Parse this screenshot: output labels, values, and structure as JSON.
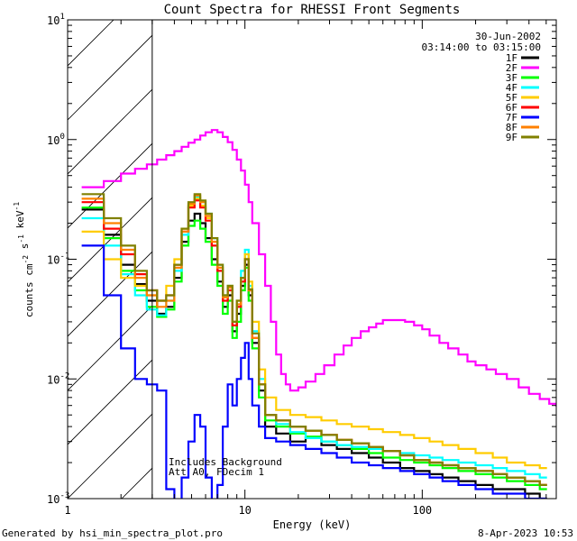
{
  "footer": {
    "generated_by": "Generated by hsi_min_spectra_plot.pro",
    "timestamp": "8-Apr-2023 10:53"
  },
  "chart_data": {
    "type": "line",
    "title": "Count Spectra for RHESSI Front Segments",
    "xlabel": "Energy (keV)",
    "ylabel": "counts cm^-2 s^-1 keV^-1",
    "xscale": "log",
    "yscale": "log",
    "xlim": [
      1,
      570
    ],
    "ylim": [
      0.001,
      10
    ],
    "x_tick_labels": [
      {
        "value": 1,
        "text": "1"
      },
      {
        "value": 10,
        "text": "10"
      },
      {
        "value": 100,
        "text": "100"
      }
    ],
    "y_tick_labels": [
      {
        "value": 0.001,
        "mant": "10",
        "exp": "-3"
      },
      {
        "value": 0.01,
        "mant": "10",
        "exp": "-2"
      },
      {
        "value": 0.1,
        "mant": "10",
        "exp": "-1"
      },
      {
        "value": 1,
        "mant": "10",
        "exp": "0"
      },
      {
        "value": 10,
        "mant": "10",
        "exp": "1"
      }
    ],
    "grid": false,
    "legend_position": "top-right",
    "date": "30-Jun-2002",
    "time_range": "03:14:00 to 03:15:00",
    "shaded_region_max": 3,
    "annotations": [
      "Includes Background",
      "Att A0, FDecim 1"
    ],
    "series": [
      {
        "name": "1F",
        "color": "#000000",
        "x": [
          1.2,
          1.6,
          2.0,
          2.4,
          2.8,
          3.2,
          3.6,
          4.0,
          4.4,
          4.8,
          5.2,
          5.6,
          6.0,
          6.5,
          7.0,
          7.5,
          8.0,
          8.5,
          9.0,
          9.5,
          10.0,
          10.5,
          11,
          12,
          13,
          15,
          18,
          22,
          27,
          33,
          40,
          50,
          60,
          75,
          90,
          110,
          130,
          160,
          200,
          250,
          300,
          380,
          460
        ],
        "y": [
          0.26,
          0.16,
          0.09,
          0.062,
          0.045,
          0.035,
          0.04,
          0.07,
          0.14,
          0.21,
          0.24,
          0.2,
          0.15,
          0.1,
          0.065,
          0.04,
          0.05,
          0.025,
          0.035,
          0.06,
          0.09,
          0.05,
          0.02,
          0.008,
          0.004,
          0.0035,
          0.003,
          0.0032,
          0.0028,
          0.0026,
          0.0024,
          0.0022,
          0.002,
          0.0018,
          0.0017,
          0.0016,
          0.0015,
          0.0014,
          0.0013,
          0.0012,
          0.0012,
          0.0011,
          0.001
        ]
      },
      {
        "name": "2F",
        "color": "#ff00ff",
        "x": [
          1.2,
          1.6,
          2.0,
          2.4,
          2.8,
          3.2,
          3.6,
          4.0,
          4.4,
          4.8,
          5.2,
          5.6,
          6.0,
          6.5,
          7.0,
          7.5,
          8.0,
          8.5,
          9.0,
          9.5,
          10.0,
          10.5,
          11,
          12,
          13,
          14,
          15,
          16,
          17,
          18,
          20,
          22,
          25,
          28,
          32,
          36,
          40,
          45,
          50,
          55,
          60,
          70,
          80,
          90,
          100,
          110,
          125,
          140,
          160,
          180,
          200,
          230,
          260,
          300,
          350,
          400,
          460,
          520,
          570
        ],
        "y": [
          0.4,
          0.45,
          0.52,
          0.57,
          0.62,
          0.68,
          0.74,
          0.8,
          0.87,
          0.94,
          1.0,
          1.08,
          1.15,
          1.2,
          1.15,
          1.05,
          0.95,
          0.82,
          0.68,
          0.55,
          0.42,
          0.3,
          0.2,
          0.11,
          0.06,
          0.03,
          0.016,
          0.011,
          0.009,
          0.008,
          0.0085,
          0.0095,
          0.011,
          0.013,
          0.016,
          0.019,
          0.022,
          0.025,
          0.027,
          0.029,
          0.031,
          0.031,
          0.03,
          0.028,
          0.026,
          0.023,
          0.02,
          0.018,
          0.016,
          0.014,
          0.013,
          0.012,
          0.011,
          0.01,
          0.0085,
          0.0075,
          0.0068,
          0.0062,
          0.006
        ]
      },
      {
        "name": "3F",
        "color": "#00ff00",
        "x": [
          1.2,
          1.6,
          2.0,
          2.4,
          2.8,
          3.2,
          3.6,
          4.0,
          4.4,
          4.8,
          5.2,
          5.6,
          6.0,
          6.5,
          7.0,
          7.5,
          8.0,
          8.5,
          9.0,
          9.5,
          10.0,
          10.5,
          11,
          12,
          13,
          15,
          18,
          22,
          27,
          33,
          40,
          50,
          60,
          75,
          90,
          110,
          130,
          160,
          200,
          250,
          300,
          380,
          460
        ],
        "y": [
          0.27,
          0.15,
          0.08,
          0.055,
          0.04,
          0.033,
          0.038,
          0.065,
          0.13,
          0.19,
          0.21,
          0.18,
          0.14,
          0.09,
          0.06,
          0.035,
          0.045,
          0.022,
          0.03,
          0.055,
          0.085,
          0.045,
          0.018,
          0.007,
          0.0045,
          0.004,
          0.0035,
          0.0033,
          0.003,
          0.0028,
          0.0026,
          0.0024,
          0.0022,
          0.0021,
          0.002,
          0.0019,
          0.0018,
          0.0017,
          0.0016,
          0.0015,
          0.0014,
          0.0013,
          0.0012
        ]
      },
      {
        "name": "4F",
        "color": "#00ffff",
        "x": [
          1.2,
          1.6,
          2.0,
          2.4,
          2.8,
          3.2,
          3.6,
          4.0,
          4.4,
          4.8,
          5.2,
          5.6,
          6.0,
          6.5,
          7.0,
          7.5,
          8.0,
          8.5,
          9.0,
          9.5,
          10.0,
          10.5,
          11,
          12,
          13,
          15,
          18,
          22,
          27,
          33,
          40,
          50,
          60,
          75,
          90,
          110,
          130,
          160,
          200,
          250,
          300,
          380,
          460
        ],
        "y": [
          0.22,
          0.13,
          0.075,
          0.05,
          0.038,
          0.034,
          0.045,
          0.08,
          0.16,
          0.28,
          0.33,
          0.3,
          0.24,
          0.15,
          0.09,
          0.05,
          0.06,
          0.03,
          0.04,
          0.08,
          0.12,
          0.06,
          0.025,
          0.01,
          0.005,
          0.0042,
          0.0036,
          0.0032,
          0.003,
          0.0028,
          0.0027,
          0.0026,
          0.0025,
          0.0024,
          0.0023,
          0.0022,
          0.0021,
          0.002,
          0.0019,
          0.0018,
          0.0017,
          0.0016,
          0.0015
        ]
      },
      {
        "name": "5F",
        "color": "#ffcc00",
        "x": [
          1.2,
          1.6,
          2.0,
          2.4,
          2.8,
          3.2,
          3.6,
          4.0,
          4.4,
          4.8,
          5.2,
          5.6,
          6.0,
          6.5,
          7.0,
          7.5,
          8.0,
          8.5,
          9.0,
          9.5,
          10.0,
          10.5,
          11,
          12,
          13,
          15,
          18,
          22,
          27,
          33,
          40,
          50,
          60,
          75,
          90,
          110,
          130,
          160,
          200,
          250,
          300,
          380,
          460
        ],
        "y": [
          0.17,
          0.1,
          0.07,
          0.06,
          0.05,
          0.045,
          0.06,
          0.1,
          0.18,
          0.28,
          0.32,
          0.28,
          0.22,
          0.14,
          0.085,
          0.05,
          0.06,
          0.03,
          0.045,
          0.07,
          0.11,
          0.065,
          0.03,
          0.012,
          0.007,
          0.0055,
          0.005,
          0.0048,
          0.0045,
          0.0042,
          0.004,
          0.0038,
          0.0036,
          0.0034,
          0.0032,
          0.003,
          0.0028,
          0.0026,
          0.0024,
          0.0022,
          0.002,
          0.0019,
          0.0018
        ]
      },
      {
        "name": "6F",
        "color": "#ff0000",
        "x": [
          1.2,
          1.6,
          2.0,
          2.4,
          2.8,
          3.2,
          3.6,
          4.0,
          4.4,
          4.8,
          5.2,
          5.6,
          6.0,
          6.5,
          7.0,
          7.5,
          8.0,
          8.5,
          9.0,
          9.5,
          10.0,
          10.5,
          11,
          12,
          13,
          15,
          18,
          22,
          27,
          33,
          40,
          50,
          60,
          75,
          90,
          110,
          130,
          160,
          200,
          250,
          300,
          380,
          460
        ],
        "y": [
          0.3,
          0.18,
          0.11,
          0.075,
          0.055,
          0.045,
          0.05,
          0.09,
          0.17,
          0.27,
          0.31,
          0.27,
          0.21,
          0.13,
          0.08,
          0.045,
          0.055,
          0.028,
          0.04,
          0.065,
          0.1,
          0.055,
          0.022,
          0.009,
          0.005,
          0.0045,
          0.004,
          0.0037,
          0.0034,
          0.0031,
          0.0029,
          0.0027,
          0.0025,
          0.0023,
          0.0021,
          0.002,
          0.0019,
          0.0018,
          0.0017,
          0.0016,
          0.0015,
          0.0014,
          0.0013
        ]
      },
      {
        "name": "7F",
        "color": "#0000ff",
        "x": [
          1.2,
          1.6,
          2.0,
          2.4,
          2.8,
          3.2,
          3.6,
          4.0,
          4.4,
          4.8,
          5.2,
          5.6,
          6.0,
          6.5,
          7.0,
          7.5,
          8.0,
          8.5,
          9.0,
          9.5,
          10.0,
          10.5,
          11,
          12,
          13,
          15,
          18,
          22,
          27,
          33,
          40,
          50,
          60,
          75,
          90,
          110,
          130,
          160,
          200,
          250,
          300,
          380,
          460
        ],
        "y": [
          0.13,
          0.05,
          0.018,
          0.01,
          0.009,
          0.008,
          0.0012,
          0.0009,
          0.0015,
          0.003,
          0.005,
          0.004,
          0.0015,
          0.0009,
          0.0013,
          0.004,
          0.009,
          0.006,
          0.01,
          0.015,
          0.02,
          0.01,
          0.006,
          0.004,
          0.0032,
          0.003,
          0.0028,
          0.0026,
          0.0024,
          0.0022,
          0.002,
          0.0019,
          0.0018,
          0.0017,
          0.0016,
          0.0015,
          0.0014,
          0.0013,
          0.0012,
          0.0011,
          0.0011,
          0.001,
          0.001
        ]
      },
      {
        "name": "8F",
        "color": "#ff8000",
        "x": [
          1.2,
          1.6,
          2.0,
          2.4,
          2.8,
          3.2,
          3.6,
          4.0,
          4.4,
          4.8,
          5.2,
          5.6,
          6.0,
          6.5,
          7.0,
          7.5,
          8.0,
          8.5,
          9.0,
          9.5,
          10.0,
          10.5,
          11,
          12,
          13,
          15,
          18,
          22,
          27,
          33,
          40,
          50,
          60,
          75,
          90,
          110,
          130,
          160,
          200,
          250,
          300,
          380,
          460
        ],
        "y": [
          0.32,
          0.2,
          0.12,
          0.07,
          0.05,
          0.04,
          0.045,
          0.085,
          0.17,
          0.29,
          0.34,
          0.3,
          0.23,
          0.14,
          0.085,
          0.048,
          0.058,
          0.03,
          0.042,
          0.07,
          0.1,
          0.055,
          0.022,
          0.009,
          0.005,
          0.0045,
          0.004,
          0.0037,
          0.0034,
          0.0031,
          0.0029,
          0.0027,
          0.0025,
          0.0023,
          0.0021,
          0.002,
          0.0019,
          0.0018,
          0.0017,
          0.0016,
          0.0015,
          0.0014,
          0.0013
        ]
      },
      {
        "name": "9F",
        "color": "#808000",
        "x": [
          1.2,
          1.6,
          2.0,
          2.4,
          2.8,
          3.2,
          3.6,
          4.0,
          4.4,
          4.8,
          5.2,
          5.6,
          6.0,
          6.5,
          7.0,
          7.5,
          8.0,
          8.5,
          9.0,
          9.5,
          10.0,
          10.5,
          11,
          12,
          13,
          15,
          18,
          22,
          27,
          33,
          40,
          50,
          60,
          75,
          90,
          110,
          130,
          160,
          200,
          250,
          300,
          380,
          460
        ],
        "y": [
          0.35,
          0.22,
          0.13,
          0.08,
          0.055,
          0.045,
          0.05,
          0.09,
          0.18,
          0.3,
          0.35,
          0.31,
          0.24,
          0.15,
          0.09,
          0.05,
          0.06,
          0.03,
          0.045,
          0.07,
          0.1,
          0.056,
          0.024,
          0.009,
          0.005,
          0.0045,
          0.004,
          0.0037,
          0.0034,
          0.0031,
          0.0029,
          0.0027,
          0.0025,
          0.0023,
          0.0021,
          0.002,
          0.0019,
          0.0018,
          0.0017,
          0.0016,
          0.0015,
          0.0014,
          0.0013
        ]
      }
    ]
  }
}
